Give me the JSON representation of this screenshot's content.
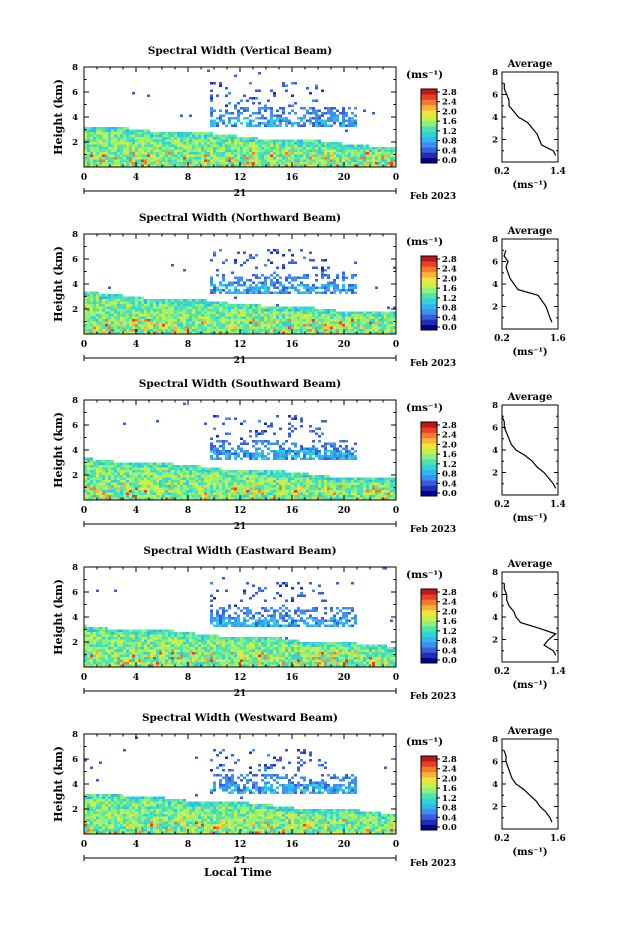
{
  "figure": {
    "date_label": "Feb 2023",
    "day_label": "21",
    "xlabel": "Local Time",
    "unit_label": "(ms⁻¹)",
    "avg_title": "Average",
    "avg_xlabel": "(ms⁻¹)"
  },
  "colorscale": {
    "colors": [
      "#00008b",
      "#1e2fb4",
      "#3a5ce0",
      "#3d8ff0",
      "#2fb8ee",
      "#30d4d8",
      "#50e3b0",
      "#8ff07a",
      "#c9f04a",
      "#f0e43a",
      "#f8b43a",
      "#f57a2a",
      "#e8402a",
      "#c01818"
    ],
    "tick_labels": [
      "0.0",
      "0.4",
      "0.8",
      "1.2",
      "1.6",
      "2.0",
      "2.4",
      "2.8"
    ]
  },
  "chart_data": [
    {
      "type": "heatmap",
      "title": "Spectral Width (Vertical Beam)",
      "ylabel": "Height (km)",
      "xlim": [
        0,
        24
      ],
      "ylim": [
        0,
        8
      ],
      "xticks": [
        "0",
        "4",
        "8",
        "12",
        "16",
        "20",
        "0"
      ],
      "yticks": [
        "2",
        "4",
        "6",
        "8"
      ],
      "cbar_labels": [
        "0.0",
        "0.4",
        "0.8",
        "1.2",
        "1.6",
        "2.0",
        "2.4",
        "2.8"
      ],
      "profile": {
        "xticks": [
          "0.2",
          "1.4"
        ],
        "xlim": [
          0.2,
          1.4
        ],
        "ylim": [
          0,
          8
        ],
        "yticks": [
          "2",
          "4",
          "6",
          "8"
        ],
        "height_km": [
          0.6,
          1.0,
          1.5,
          2.0,
          2.5,
          3.0,
          3.5,
          4.0,
          4.5,
          5.0,
          5.5,
          6.0,
          6.5,
          7.0
        ],
        "value": [
          1.35,
          1.3,
          1.05,
          1.0,
          0.95,
          0.85,
          0.75,
          0.55,
          0.45,
          0.35,
          0.35,
          0.3,
          0.25,
          0.25
        ]
      }
    },
    {
      "type": "heatmap",
      "title": "Spectral Width (Northward Beam)",
      "ylabel": "Height (km)",
      "xlim": [
        0,
        24
      ],
      "ylim": [
        0,
        8
      ],
      "xticks": [
        "0",
        "4",
        "8",
        "12",
        "16",
        "20",
        "0"
      ],
      "yticks": [
        "2",
        "4",
        "6",
        "8"
      ],
      "cbar_labels": [
        "0.0",
        "0.4",
        "0.8",
        "1.2",
        "1.6",
        "2.0",
        "2.4",
        "2.8"
      ],
      "profile": {
        "xticks": [
          "0.2",
          "1.6"
        ],
        "xlim": [
          0.2,
          1.6
        ],
        "ylim": [
          0,
          8
        ],
        "yticks": [
          "2",
          "4",
          "6",
          "8"
        ],
        "height_km": [
          0.6,
          1.0,
          1.5,
          2.0,
          2.5,
          3.0,
          3.5,
          4.0,
          4.5,
          5.0,
          5.5,
          6.0,
          6.5,
          7.0
        ],
        "value": [
          1.45,
          1.4,
          1.35,
          1.3,
          1.2,
          1.1,
          0.6,
          0.5,
          0.4,
          0.35,
          0.3,
          0.35,
          0.25,
          0.3
        ]
      }
    },
    {
      "type": "heatmap",
      "title": "Spectral Width (Southward Beam)",
      "ylabel": "Height (km)",
      "xlim": [
        0,
        24
      ],
      "ylim": [
        0,
        8
      ],
      "xticks": [
        "0",
        "4",
        "8",
        "12",
        "16",
        "20",
        "0"
      ],
      "yticks": [
        "2",
        "4",
        "6",
        "8"
      ],
      "cbar_labels": [
        "0.0",
        "0.4",
        "0.8",
        "1.2",
        "1.6",
        "2.0",
        "2.4",
        "2.8"
      ],
      "profile": {
        "xticks": [
          "0.2",
          "1.4"
        ],
        "xlim": [
          0.2,
          1.4
        ],
        "ylim": [
          0,
          8
        ],
        "yticks": [
          "2",
          "4",
          "6",
          "8"
        ],
        "height_km": [
          0.6,
          1.0,
          1.5,
          2.0,
          2.5,
          3.0,
          3.5,
          4.0,
          4.5,
          5.0,
          5.5,
          6.0,
          6.5,
          7.0
        ],
        "value": [
          1.35,
          1.3,
          1.2,
          1.1,
          0.95,
          0.85,
          0.7,
          0.5,
          0.4,
          0.35,
          0.3,
          0.25,
          0.25,
          0.2
        ]
      }
    },
    {
      "type": "heatmap",
      "title": "Spectral Width (Eastward Beam)",
      "ylabel": "Height (km)",
      "xlim": [
        0,
        24
      ],
      "ylim": [
        0,
        8
      ],
      "xticks": [
        "0",
        "4",
        "8",
        "12",
        "16",
        "20",
        "0"
      ],
      "yticks": [
        "2",
        "4",
        "6",
        "8"
      ],
      "cbar_labels": [
        "0.0",
        "0.4",
        "0.8",
        "1.2",
        "1.6",
        "2.0",
        "2.4",
        "2.8"
      ],
      "profile": {
        "xticks": [
          "0.2",
          "1.4"
        ],
        "xlim": [
          0.2,
          1.4
        ],
        "ylim": [
          0,
          8
        ],
        "yticks": [
          "2",
          "4",
          "6",
          "8"
        ],
        "height_km": [
          0.6,
          1.0,
          1.5,
          2.0,
          2.5,
          3.0,
          3.5,
          4.0,
          4.5,
          5.0,
          5.5,
          6.0,
          6.5,
          7.0
        ],
        "value": [
          1.35,
          1.3,
          1.1,
          1.2,
          1.35,
          1.0,
          0.6,
          0.5,
          0.45,
          0.35,
          0.3,
          0.3,
          0.25,
          0.25
        ]
      }
    },
    {
      "type": "heatmap",
      "title": "Spectral Width (Westward Beam)",
      "ylabel": "Height (km)",
      "xlim": [
        0,
        24
      ],
      "ylim": [
        0,
        8
      ],
      "xticks": [
        "0",
        "4",
        "8",
        "12",
        "16",
        "20",
        "0"
      ],
      "yticks": [
        "2",
        "4",
        "6",
        "8"
      ],
      "cbar_labels": [
        "0.0",
        "0.4",
        "0.8",
        "1.2",
        "1.6",
        "2.0",
        "2.4",
        "2.8"
      ],
      "profile": {
        "xticks": [
          "0.2",
          "1.6"
        ],
        "xlim": [
          0.2,
          1.6
        ],
        "ylim": [
          0,
          8
        ],
        "yticks": [
          "2",
          "4",
          "6",
          "8"
        ],
        "height_km": [
          0.6,
          1.0,
          1.5,
          2.0,
          2.5,
          3.0,
          3.5,
          4.0,
          4.5,
          5.0,
          5.5,
          6.0,
          6.5,
          7.0
        ],
        "value": [
          1.45,
          1.4,
          1.3,
          1.15,
          1.05,
          0.9,
          0.75,
          0.55,
          0.45,
          0.4,
          0.35,
          0.3,
          0.3,
          0.25
        ]
      }
    }
  ]
}
